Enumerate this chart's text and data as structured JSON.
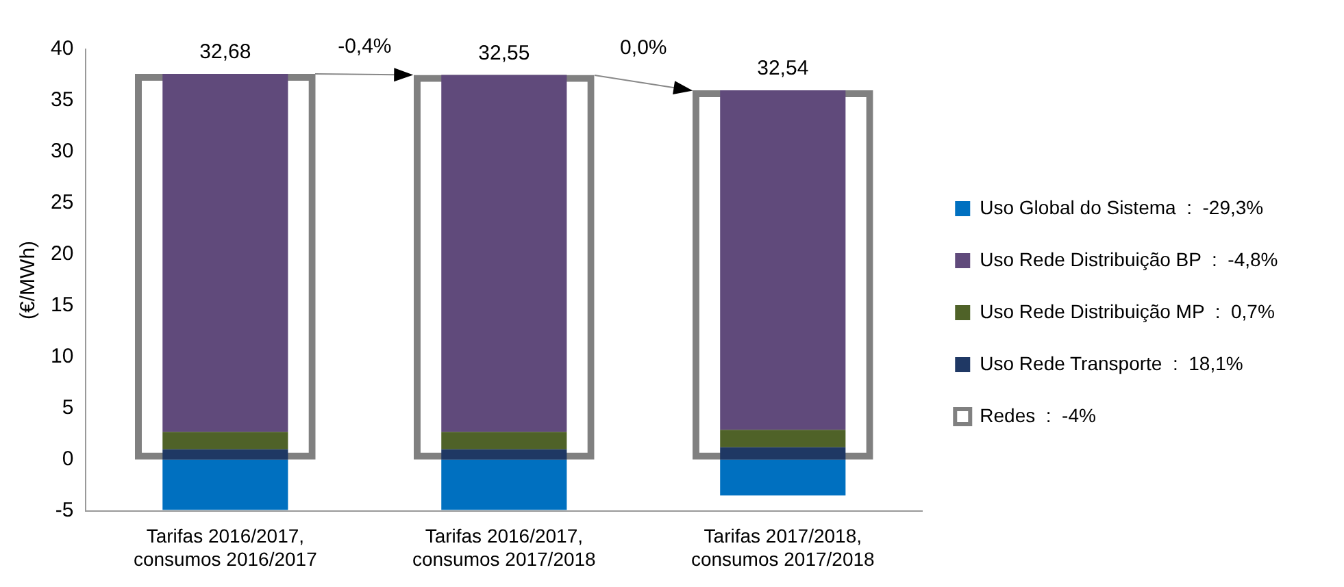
{
  "chart_data": {
    "type": "bar",
    "ylabel": "(€/MWh)",
    "categories": [
      "Tarifas 2016/2017, consumos 2016/2017",
      "Tarifas 2016/2017, consumos 2017/2018",
      "Tarifas 2017/2018, consumos 2017/2018"
    ],
    "series": [
      {
        "name": "Uso Rede Transporte  :  18,1%",
        "color": "#1f3864",
        "values": [
          1.0,
          1.0,
          1.2
        ],
        "base": [
          0,
          0,
          0
        ]
      },
      {
        "name": "Uso Rede Distribuição MP  :  0,7%",
        "color": "#4f6228",
        "values": [
          1.7,
          1.7,
          1.7
        ],
        "base": [
          1.0,
          1.0,
          1.2
        ]
      },
      {
        "name": "Uso Rede Distribuição BP  :  -4,8%",
        "color": "#604a7b",
        "values": [
          34.9,
          34.8,
          33.1
        ],
        "base": [
          2.7,
          2.7,
          2.9
        ]
      },
      {
        "name": "Uso Global do Sistema  :  -29,3%",
        "color": "#0070c0",
        "values": [
          -4.9,
          -4.9,
          -3.5
        ],
        "base": [
          0,
          0,
          0
        ]
      },
      {
        "name": "Redes  :  -4%",
        "color": "#808080",
        "values": [
          37.6,
          37.5,
          36.0
        ],
        "base": [
          0,
          0,
          0
        ]
      }
    ],
    "annotations": [
      {
        "text": "32,68",
        "x": "Tarifas 2016/2017, consumos 2016/2017",
        "y": 37.6
      },
      {
        "text": "32,55",
        "x": "Tarifas 2016/2017, consumos 2017/2018",
        "y": 37.5
      },
      {
        "text": "32,54",
        "x": "Tarifas 2017/2018, consumos 2017/2018",
        "y": 36.0
      },
      "-0,4%",
      "0,0%"
    ],
    "ylim": [
      -5,
      40
    ],
    "yticks": [
      -5,
      0,
      5,
      10,
      15,
      20,
      25,
      30,
      35,
      40
    ],
    "grid": false,
    "legend": "right"
  }
}
